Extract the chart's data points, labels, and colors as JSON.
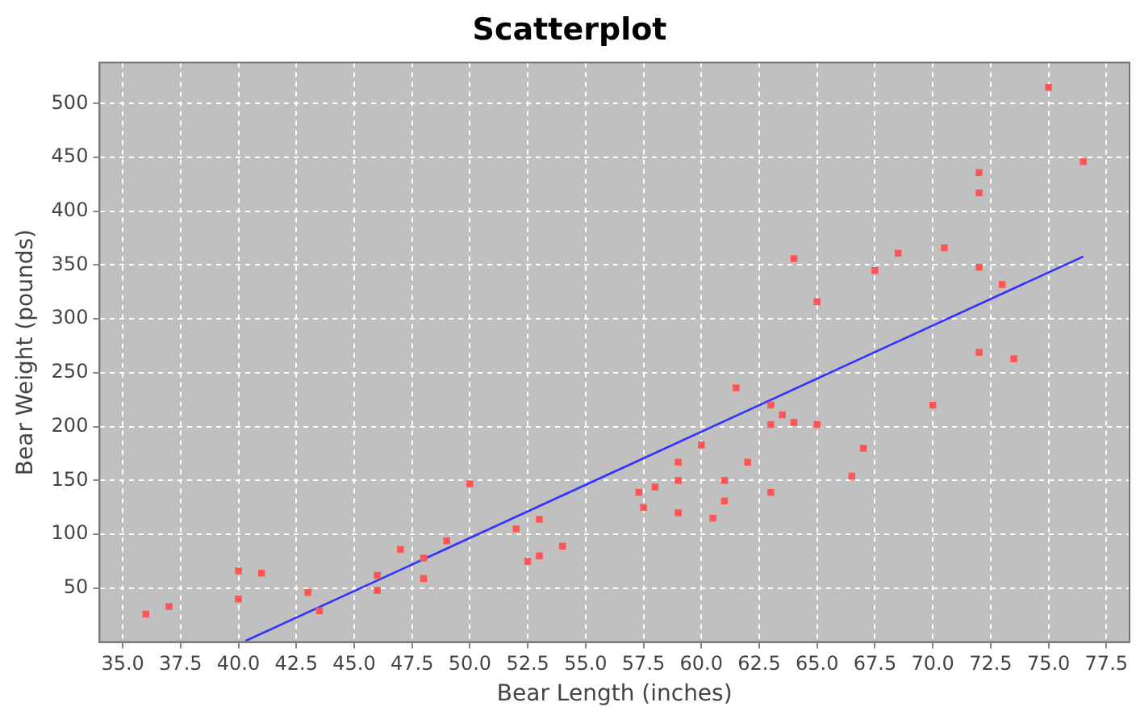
{
  "chart_data": {
    "type": "scatter",
    "title": "Scatterplot",
    "xlabel": "Bear Length (inches)",
    "ylabel": "Bear Weight (pounds)",
    "xlim": [
      34,
      78.5
    ],
    "ylim": [
      0,
      538
    ],
    "xticks": [
      {
        "value": 35,
        "label": "35.0"
      },
      {
        "value": 37.5,
        "label": "37.5"
      },
      {
        "value": 40,
        "label": "40.0"
      },
      {
        "value": 42.5,
        "label": "42.5"
      },
      {
        "value": 45,
        "label": "45.0"
      },
      {
        "value": 47.5,
        "label": "47.5"
      },
      {
        "value": 50,
        "label": "50.0"
      },
      {
        "value": 52.5,
        "label": "52.5"
      },
      {
        "value": 55,
        "label": "55.0"
      },
      {
        "value": 57.5,
        "label": "57.5"
      },
      {
        "value": 60,
        "label": "60.0"
      },
      {
        "value": 62.5,
        "label": "62.5"
      },
      {
        "value": 65,
        "label": "65.0"
      },
      {
        "value": 67.5,
        "label": "67.5"
      },
      {
        "value": 70,
        "label": "70.0"
      },
      {
        "value": 72.5,
        "label": "72.5"
      },
      {
        "value": 75,
        "label": "75.0"
      },
      {
        "value": 77.5,
        "label": "77.5"
      }
    ],
    "yticks": [
      50,
      100,
      150,
      200,
      250,
      300,
      350,
      400,
      450,
      500
    ],
    "grid": true,
    "legend": false,
    "marker": "square",
    "series": [
      {
        "color": "#ff5555",
        "x": [
          36,
          37,
          40,
          40,
          41,
          43,
          43.5,
          46,
          46,
          47,
          48,
          48,
          49,
          50,
          52,
          52.5,
          53,
          53,
          54,
          57.3,
          57.5,
          58,
          59,
          59,
          59,
          60,
          60.5,
          61,
          61,
          61.5,
          62,
          63,
          63,
          63,
          63.5,
          64,
          64,
          65,
          65,
          66.5,
          67,
          67.5,
          68.5,
          70,
          70.5,
          72,
          72,
          72,
          72,
          73,
          73.5,
          75,
          76.5
        ],
        "values": [
          26,
          33,
          66,
          40,
          64,
          46,
          29,
          62,
          48,
          86,
          78,
          59,
          94,
          147,
          105,
          75,
          114,
          80,
          89,
          139,
          125,
          144,
          167,
          150,
          120,
          183,
          115,
          150,
          131,
          236,
          167,
          220,
          202,
          139,
          211,
          204,
          356,
          316,
          202,
          154,
          180,
          345,
          361,
          220,
          366,
          436,
          417,
          348,
          269,
          332,
          263,
          515,
          446
        ]
      },
      {
        "type": "line",
        "color": "#3333ff",
        "marker": "none",
        "line_style": "solid",
        "x": [
          40.3,
          76.5
        ],
        "values": [
          1,
          358
        ]
      }
    ]
  }
}
